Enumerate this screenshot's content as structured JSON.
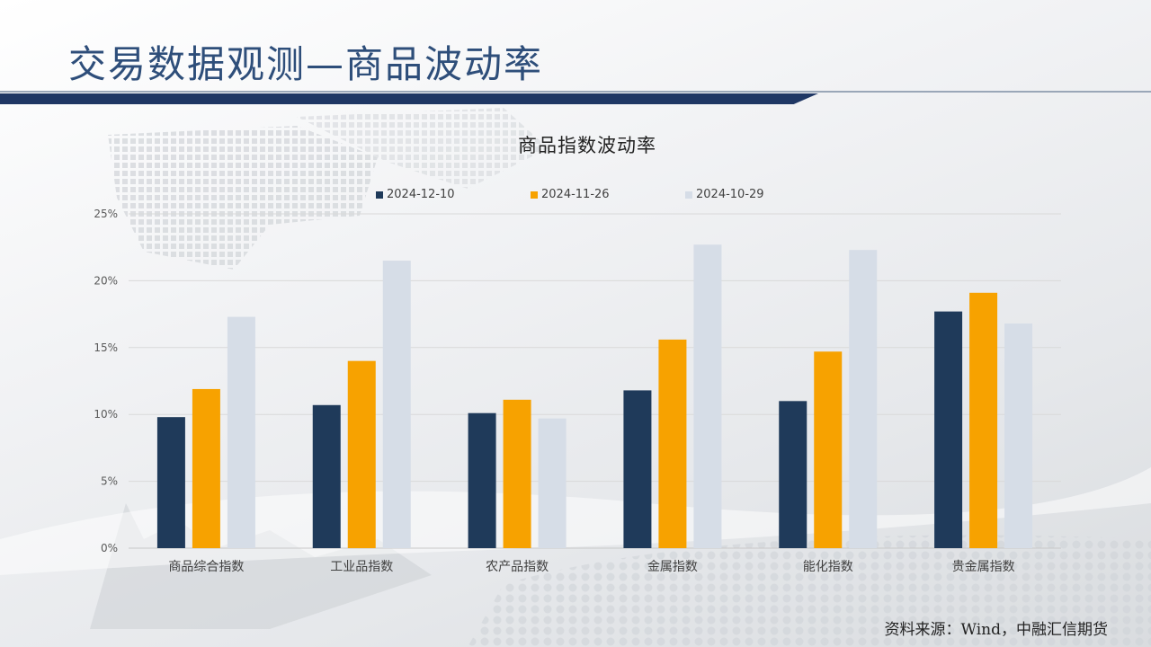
{
  "slide": {
    "title": "交易数据观测—商品波动率",
    "source": "资料来源：Wind，中融汇信期货"
  },
  "chart_data": {
    "type": "bar",
    "title": "商品指数波动率",
    "categories": [
      "商品综合指数",
      "工业品指数",
      "农产品指数",
      "金属指数",
      "能化指数",
      "贵金属指数"
    ],
    "series": [
      {
        "name": "2024-12-10",
        "color": "#1f3a5a",
        "values": [
          9.8,
          10.7,
          10.1,
          11.8,
          11.0,
          17.7
        ]
      },
      {
        "name": "2024-11-26",
        "color": "#f7a200",
        "values": [
          11.9,
          14.0,
          11.1,
          15.6,
          14.7,
          19.1
        ]
      },
      {
        "name": "2024-10-29",
        "color": "#d6dde7",
        "values": [
          17.3,
          21.5,
          9.7,
          22.7,
          22.3,
          16.8
        ]
      }
    ],
    "yticks": [
      "0%",
      "5%",
      "10%",
      "15%",
      "20%",
      "25%"
    ],
    "ylim": [
      0,
      25
    ],
    "grid": true,
    "legend_position": "top"
  }
}
